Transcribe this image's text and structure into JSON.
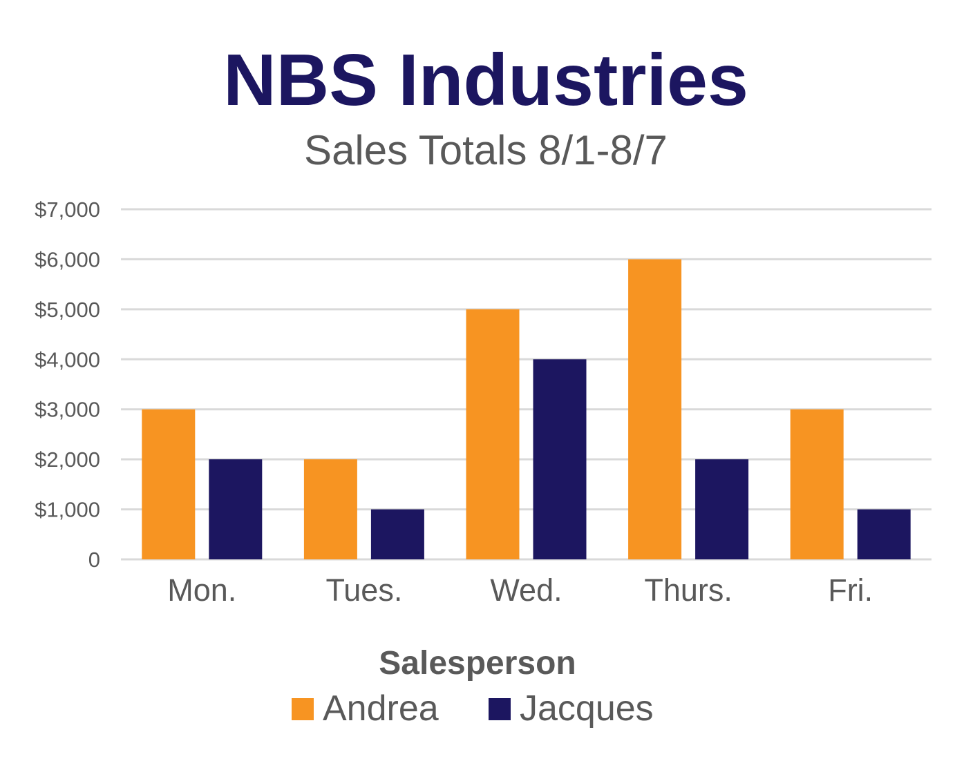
{
  "chart_data": {
    "type": "bar",
    "title": "NBS Industries",
    "subtitle": "Sales Totals 8/1-8/7",
    "xlabel": "",
    "ylabel": "",
    "categories": [
      "Mon.",
      "Tues.",
      "Wed.",
      "Thurs.",
      "Fri."
    ],
    "series": [
      {
        "name": "Andrea",
        "values": [
          3000,
          2000,
          5000,
          6000,
          3000
        ],
        "color": "#F79422"
      },
      {
        "name": "Jacques",
        "values": [
          2000,
          1000,
          4000,
          2000,
          1000
        ],
        "color": "#1C1660"
      }
    ],
    "ylim": [
      0,
      7000
    ],
    "yticks": [
      0,
      1000,
      2000,
      3000,
      4000,
      5000,
      6000,
      7000
    ],
    "ytick_labels": [
      "0",
      "$1,000",
      "$2,000",
      "$3,000",
      "$4,000",
      "$5,000",
      "$6,000",
      "$7,000"
    ],
    "grid": true,
    "legend": {
      "title": "Salesperson",
      "placement": "bottom"
    }
  },
  "colors": {
    "title": "#1C1660",
    "text": "#595959",
    "grid": "#D9D9D9"
  }
}
